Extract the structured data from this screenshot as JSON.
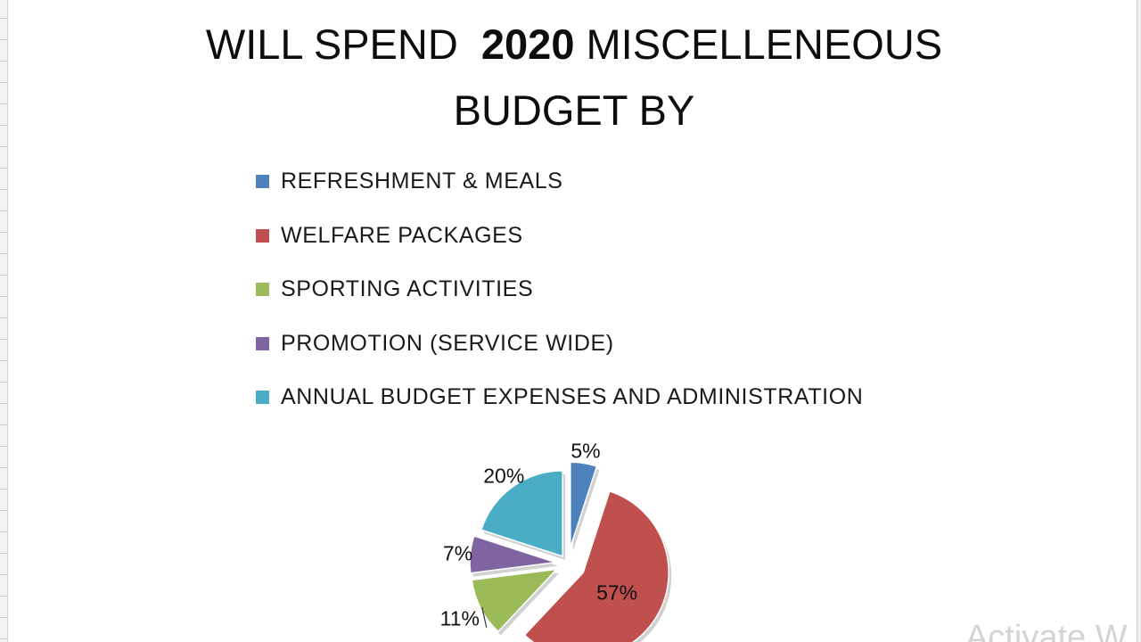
{
  "chart_data": {
    "type": "pie",
    "title_line1_prefix": "WILL SPEND",
    "title_line1_year": "2020",
    "title_line1_suffix": "MISCELLENEOUS",
    "title_line2": "BUDGET BY",
    "xlabel": "",
    "ylabel": "",
    "legend_position": "top",
    "categories": [
      "REFRESHMENT  & MEALS",
      "WELFARE PACKAGES",
      "SPORTING ACTIVITIES",
      "PROMOTION (SERVICE  WIDE)",
      "ANNUAL BUDGET EXPENSES AND ADMINISTRATION"
    ],
    "values": [
      5,
      57,
      11,
      7,
      20
    ],
    "labels": [
      "5%",
      "57%",
      "11%",
      "7%",
      "20%"
    ],
    "colors": [
      "#4F81BD",
      "#C0504D",
      "#9BBB59",
      "#8064A2",
      "#4BACC6"
    ],
    "exploded": true
  },
  "watermark": "Activate W"
}
